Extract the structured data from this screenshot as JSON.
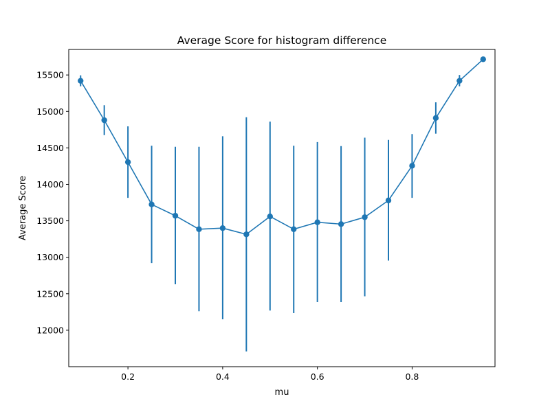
{
  "chart_data": {
    "type": "line",
    "title": "Average Score for histogram difference",
    "xlabel": "mu",
    "ylabel": "Average Score",
    "xlim": [
      0.075,
      0.975
    ],
    "ylim": [
      11500,
      15850
    ],
    "xticks": [
      0.2,
      0.4,
      0.6,
      0.8
    ],
    "xtick_labels": [
      "0.2",
      "0.4",
      "0.6",
      "0.8"
    ],
    "yticks": [
      12000,
      12500,
      13000,
      13500,
      14000,
      14500,
      15000,
      15500
    ],
    "ytick_labels": [
      "12000",
      "12500",
      "13000",
      "13500",
      "14000",
      "14500",
      "15000",
      "15500"
    ],
    "grid": false,
    "color": "#1f77b4",
    "series": [
      {
        "x": [
          0.1,
          0.15,
          0.2,
          0.25,
          0.3,
          0.35,
          0.4,
          0.45,
          0.5,
          0.55,
          0.6,
          0.65,
          0.7,
          0.75,
          0.8,
          0.85,
          0.9,
          0.95
        ],
        "y": [
          15420,
          14880,
          14305,
          13725,
          13570,
          13385,
          13400,
          13315,
          13560,
          13385,
          13480,
          13455,
          13550,
          13780,
          14255,
          14910,
          15420,
          15715
        ],
        "err_low": [
          15345,
          14675,
          13815,
          12920,
          12630,
          12260,
          12150,
          11710,
          12270,
          12235,
          12385,
          12385,
          12465,
          12955,
          13815,
          14695,
          15345,
          15685
        ],
        "err_high": [
          15495,
          15085,
          14795,
          14530,
          14515,
          14515,
          14660,
          14920,
          14860,
          14530,
          14580,
          14525,
          14640,
          14610,
          14690,
          15125,
          15500,
          15745
        ]
      }
    ]
  }
}
